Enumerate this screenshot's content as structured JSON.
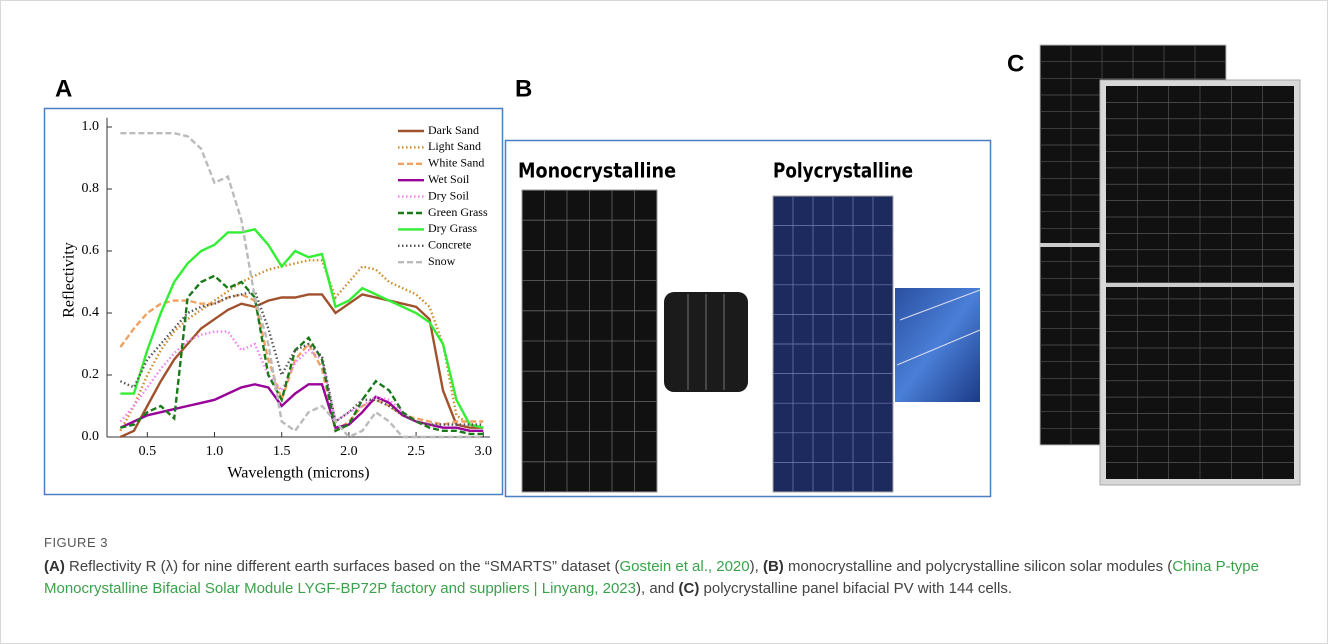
{
  "panel_labels": [
    "A",
    "B",
    "C"
  ],
  "chart_data": {
    "type": "line",
    "x_label": "Wavelength (microns)",
    "y_label": "Reflectivity",
    "xlim": [
      0.2,
      3.05
    ],
    "ylim": [
      0,
      1.03
    ],
    "xticks": [
      0.5,
      {
        "value": 1,
        "label": "1.0"
      },
      1.5,
      {
        "value": 2,
        "label": "2.0"
      },
      2.5,
      {
        "value": 3,
        "label": "3.0"
      }
    ],
    "yticks": [
      {
        "value": 0,
        "label": "0.0"
      },
      0.2,
      0.4,
      0.6,
      0.8,
      {
        "value": 1,
        "label": "1.0"
      }
    ],
    "legend": "upper right",
    "x": [
      0.3,
      0.4,
      0.5,
      0.6,
      0.7,
      0.8,
      0.9,
      1.0,
      1.1,
      1.2,
      1.3,
      1.4,
      1.5,
      1.6,
      1.7,
      1.8,
      1.9,
      2.0,
      2.1,
      2.2,
      2.3,
      2.4,
      2.5,
      2.6,
      2.7,
      2.8,
      2.9,
      3.0
    ],
    "series": [
      {
        "name": "Dark Sand",
        "color": "#a0522d",
        "style": "solid",
        "values": [
          0.0,
          0.02,
          0.1,
          0.18,
          0.25,
          0.3,
          0.35,
          0.38,
          0.41,
          0.43,
          0.42,
          0.44,
          0.45,
          0.45,
          0.46,
          0.46,
          0.4,
          0.43,
          0.46,
          0.45,
          0.44,
          0.43,
          0.42,
          0.38,
          0.15,
          0.04,
          0.03,
          0.03
        ]
      },
      {
        "name": "Light Sand",
        "color": "#cc8a2a",
        "style": "dotted",
        "values": [
          0.02,
          0.1,
          0.2,
          0.28,
          0.34,
          0.38,
          0.41,
          0.44,
          0.47,
          0.5,
          0.52,
          0.54,
          0.55,
          0.56,
          0.57,
          0.57,
          0.45,
          0.5,
          0.55,
          0.54,
          0.5,
          0.48,
          0.46,
          0.42,
          0.3,
          0.07,
          0.04,
          0.03
        ]
      },
      {
        "name": "White Sand",
        "color": "#f0a060",
        "style": "dashed",
        "values": [
          0.29,
          0.35,
          0.4,
          0.43,
          0.44,
          0.44,
          0.43,
          0.43,
          0.45,
          0.46,
          0.44,
          0.25,
          0.12,
          0.25,
          0.3,
          0.22,
          0.02,
          0.05,
          0.1,
          0.12,
          0.1,
          0.07,
          0.06,
          0.05,
          0.04,
          0.05,
          0.05,
          0.05
        ]
      },
      {
        "name": "Wet Soil",
        "color": "#990099",
        "style": "solid",
        "values": [
          0.03,
          0.05,
          0.07,
          0.08,
          0.09,
          0.1,
          0.11,
          0.12,
          0.14,
          0.16,
          0.17,
          0.16,
          0.1,
          0.14,
          0.17,
          0.17,
          0.03,
          0.04,
          0.08,
          0.13,
          0.11,
          0.07,
          0.05,
          0.04,
          0.03,
          0.03,
          0.02,
          0.02
        ]
      },
      {
        "name": "Dry Soil",
        "color": "#ee82ee",
        "style": "dotted",
        "values": [
          0.05,
          0.1,
          0.16,
          0.22,
          0.27,
          0.31,
          0.33,
          0.34,
          0.34,
          0.28,
          0.3,
          0.2,
          0.15,
          0.24,
          0.28,
          0.25,
          0.05,
          0.08,
          0.1,
          0.13,
          0.12,
          0.08,
          0.05,
          0.04,
          0.04,
          0.04,
          0.04,
          0.04
        ]
      },
      {
        "name": "Green Grass",
        "color": "#1a7a1a",
        "style": "dashed",
        "values": [
          0.03,
          0.04,
          0.08,
          0.1,
          0.06,
          0.45,
          0.5,
          0.52,
          0.48,
          0.5,
          0.45,
          0.2,
          0.12,
          0.28,
          0.32,
          0.25,
          0.02,
          0.04,
          0.12,
          0.18,
          0.15,
          0.08,
          0.05,
          0.03,
          0.02,
          0.02,
          0.01,
          0.01
        ]
      },
      {
        "name": "Dry Grass",
        "color": "#33ee33",
        "style": "solid",
        "values": [
          0.14,
          0.14,
          0.28,
          0.4,
          0.5,
          0.56,
          0.6,
          0.62,
          0.66,
          0.66,
          0.67,
          0.62,
          0.55,
          0.6,
          0.58,
          0.59,
          0.42,
          0.44,
          0.48,
          0.46,
          0.44,
          0.42,
          0.4,
          0.37,
          0.3,
          0.12,
          0.04,
          0.03
        ]
      },
      {
        "name": "Concrete",
        "color": "#555555",
        "style": "dotted",
        "values": [
          0.18,
          0.16,
          0.25,
          0.3,
          0.35,
          0.4,
          0.42,
          0.43,
          0.45,
          0.46,
          0.47,
          0.35,
          0.2,
          0.28,
          0.3,
          0.26,
          0.05,
          0.08,
          0.12,
          0.12,
          0.1,
          0.07,
          0.05,
          0.04,
          0.04,
          0.04,
          0.04,
          0.04
        ]
      },
      {
        "name": "Snow",
        "color": "#bbbbbb",
        "style": "dashed",
        "values": [
          0.98,
          0.98,
          0.98,
          0.98,
          0.98,
          0.97,
          0.93,
          0.82,
          0.84,
          0.7,
          0.45,
          0.3,
          0.05,
          0.02,
          0.08,
          0.1,
          0.05,
          0.0,
          0.02,
          0.08,
          0.05,
          0.0,
          0.0,
          0.0,
          0.0,
          0.0,
          0.0,
          0.0
        ]
      }
    ]
  },
  "panel_b": {
    "titles": [
      "Monocrystalline",
      "Polycrystalline"
    ]
  },
  "caption": {
    "label": "FIGURE 3",
    "parts": [
      {
        "text": "(A)",
        "kind": "bold"
      },
      {
        "text": " Reflectivity R (λ) for nine different earth surfaces based on the “SMARTS” dataset (",
        "kind": "plain"
      },
      {
        "text": "Gostein et al., 2020",
        "kind": "link"
      },
      {
        "text": "), ",
        "kind": "plain"
      },
      {
        "text": "(B)",
        "kind": "bold"
      },
      {
        "text": " monocrystalline and polycrystalline silicon solar modules (",
        "kind": "plain"
      },
      {
        "text": "China P-type Monocrystalline Bifacial Solar Module LYGF-BP72P factory and suppliers | Linyang, 2023",
        "kind": "link"
      },
      {
        "text": "), and ",
        "kind": "plain"
      },
      {
        "text": "(C)",
        "kind": "bold"
      },
      {
        "text": " polycrystalline panel bifacial PV with 144 cells.",
        "kind": "plain"
      }
    ]
  }
}
